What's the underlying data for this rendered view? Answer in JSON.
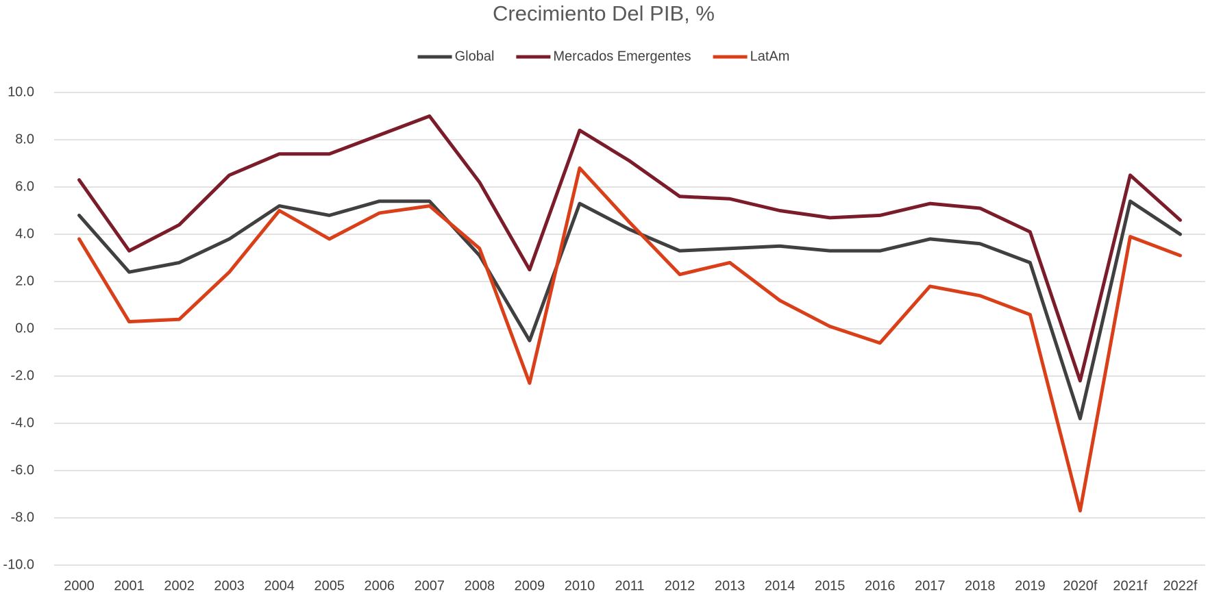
{
  "chart_data": {
    "type": "line",
    "title": "Crecimiento Del PIB, %",
    "categories": [
      "2000",
      "2001",
      "2002",
      "2003",
      "2004",
      "2005",
      "2006",
      "2007",
      "2008",
      "2009",
      "2010",
      "2011",
      "2012",
      "2013",
      "2014",
      "2015",
      "2016",
      "2017",
      "2018",
      "2019",
      "2020f",
      "2021f",
      "2022f"
    ],
    "series": [
      {
        "name": "Global",
        "color": "#404040",
        "values": [
          4.8,
          2.4,
          2.8,
          3.8,
          5.2,
          4.8,
          5.4,
          5.4,
          3.1,
          -0.5,
          5.3,
          4.2,
          3.3,
          3.4,
          3.5,
          3.3,
          3.3,
          3.8,
          3.6,
          2.8,
          -3.8,
          5.4,
          4.0
        ]
      },
      {
        "name": "Mercados Emergentes",
        "color": "#7b1c2a",
        "values": [
          6.3,
          3.3,
          4.4,
          6.5,
          7.4,
          7.4,
          8.2,
          9.0,
          6.2,
          2.5,
          8.4,
          7.1,
          5.6,
          5.5,
          5.0,
          4.7,
          4.8,
          5.3,
          5.1,
          4.1,
          -2.2,
          6.5,
          4.6
        ]
      },
      {
        "name": "LatAm",
        "color": "#d9401a",
        "values": [
          3.8,
          0.3,
          0.4,
          2.4,
          5.0,
          3.8,
          4.9,
          5.2,
          3.4,
          -2.3,
          6.8,
          4.5,
          2.3,
          2.8,
          1.2,
          0.1,
          -0.6,
          1.8,
          1.4,
          0.6,
          -7.7,
          3.9,
          3.1
        ]
      }
    ],
    "ylim": [
      -10,
      10
    ],
    "yticks": [
      {
        "value": -10,
        "label": "-10.0"
      },
      {
        "value": -8,
        "label": "-8.0"
      },
      {
        "value": -6,
        "label": "-6.0"
      },
      {
        "value": -4,
        "label": "-4.0"
      },
      {
        "value": -2,
        "label": "-2.0"
      },
      {
        "value": 0,
        "label": "0.0"
      },
      {
        "value": 2,
        "label": "2.0"
      },
      {
        "value": 4,
        "label": "4.0"
      },
      {
        "value": 6,
        "label": "6.0"
      },
      {
        "value": 8,
        "label": "8.0"
      },
      {
        "value": 10,
        "label": "10.0"
      }
    ],
    "grid": true,
    "legend": "top"
  }
}
